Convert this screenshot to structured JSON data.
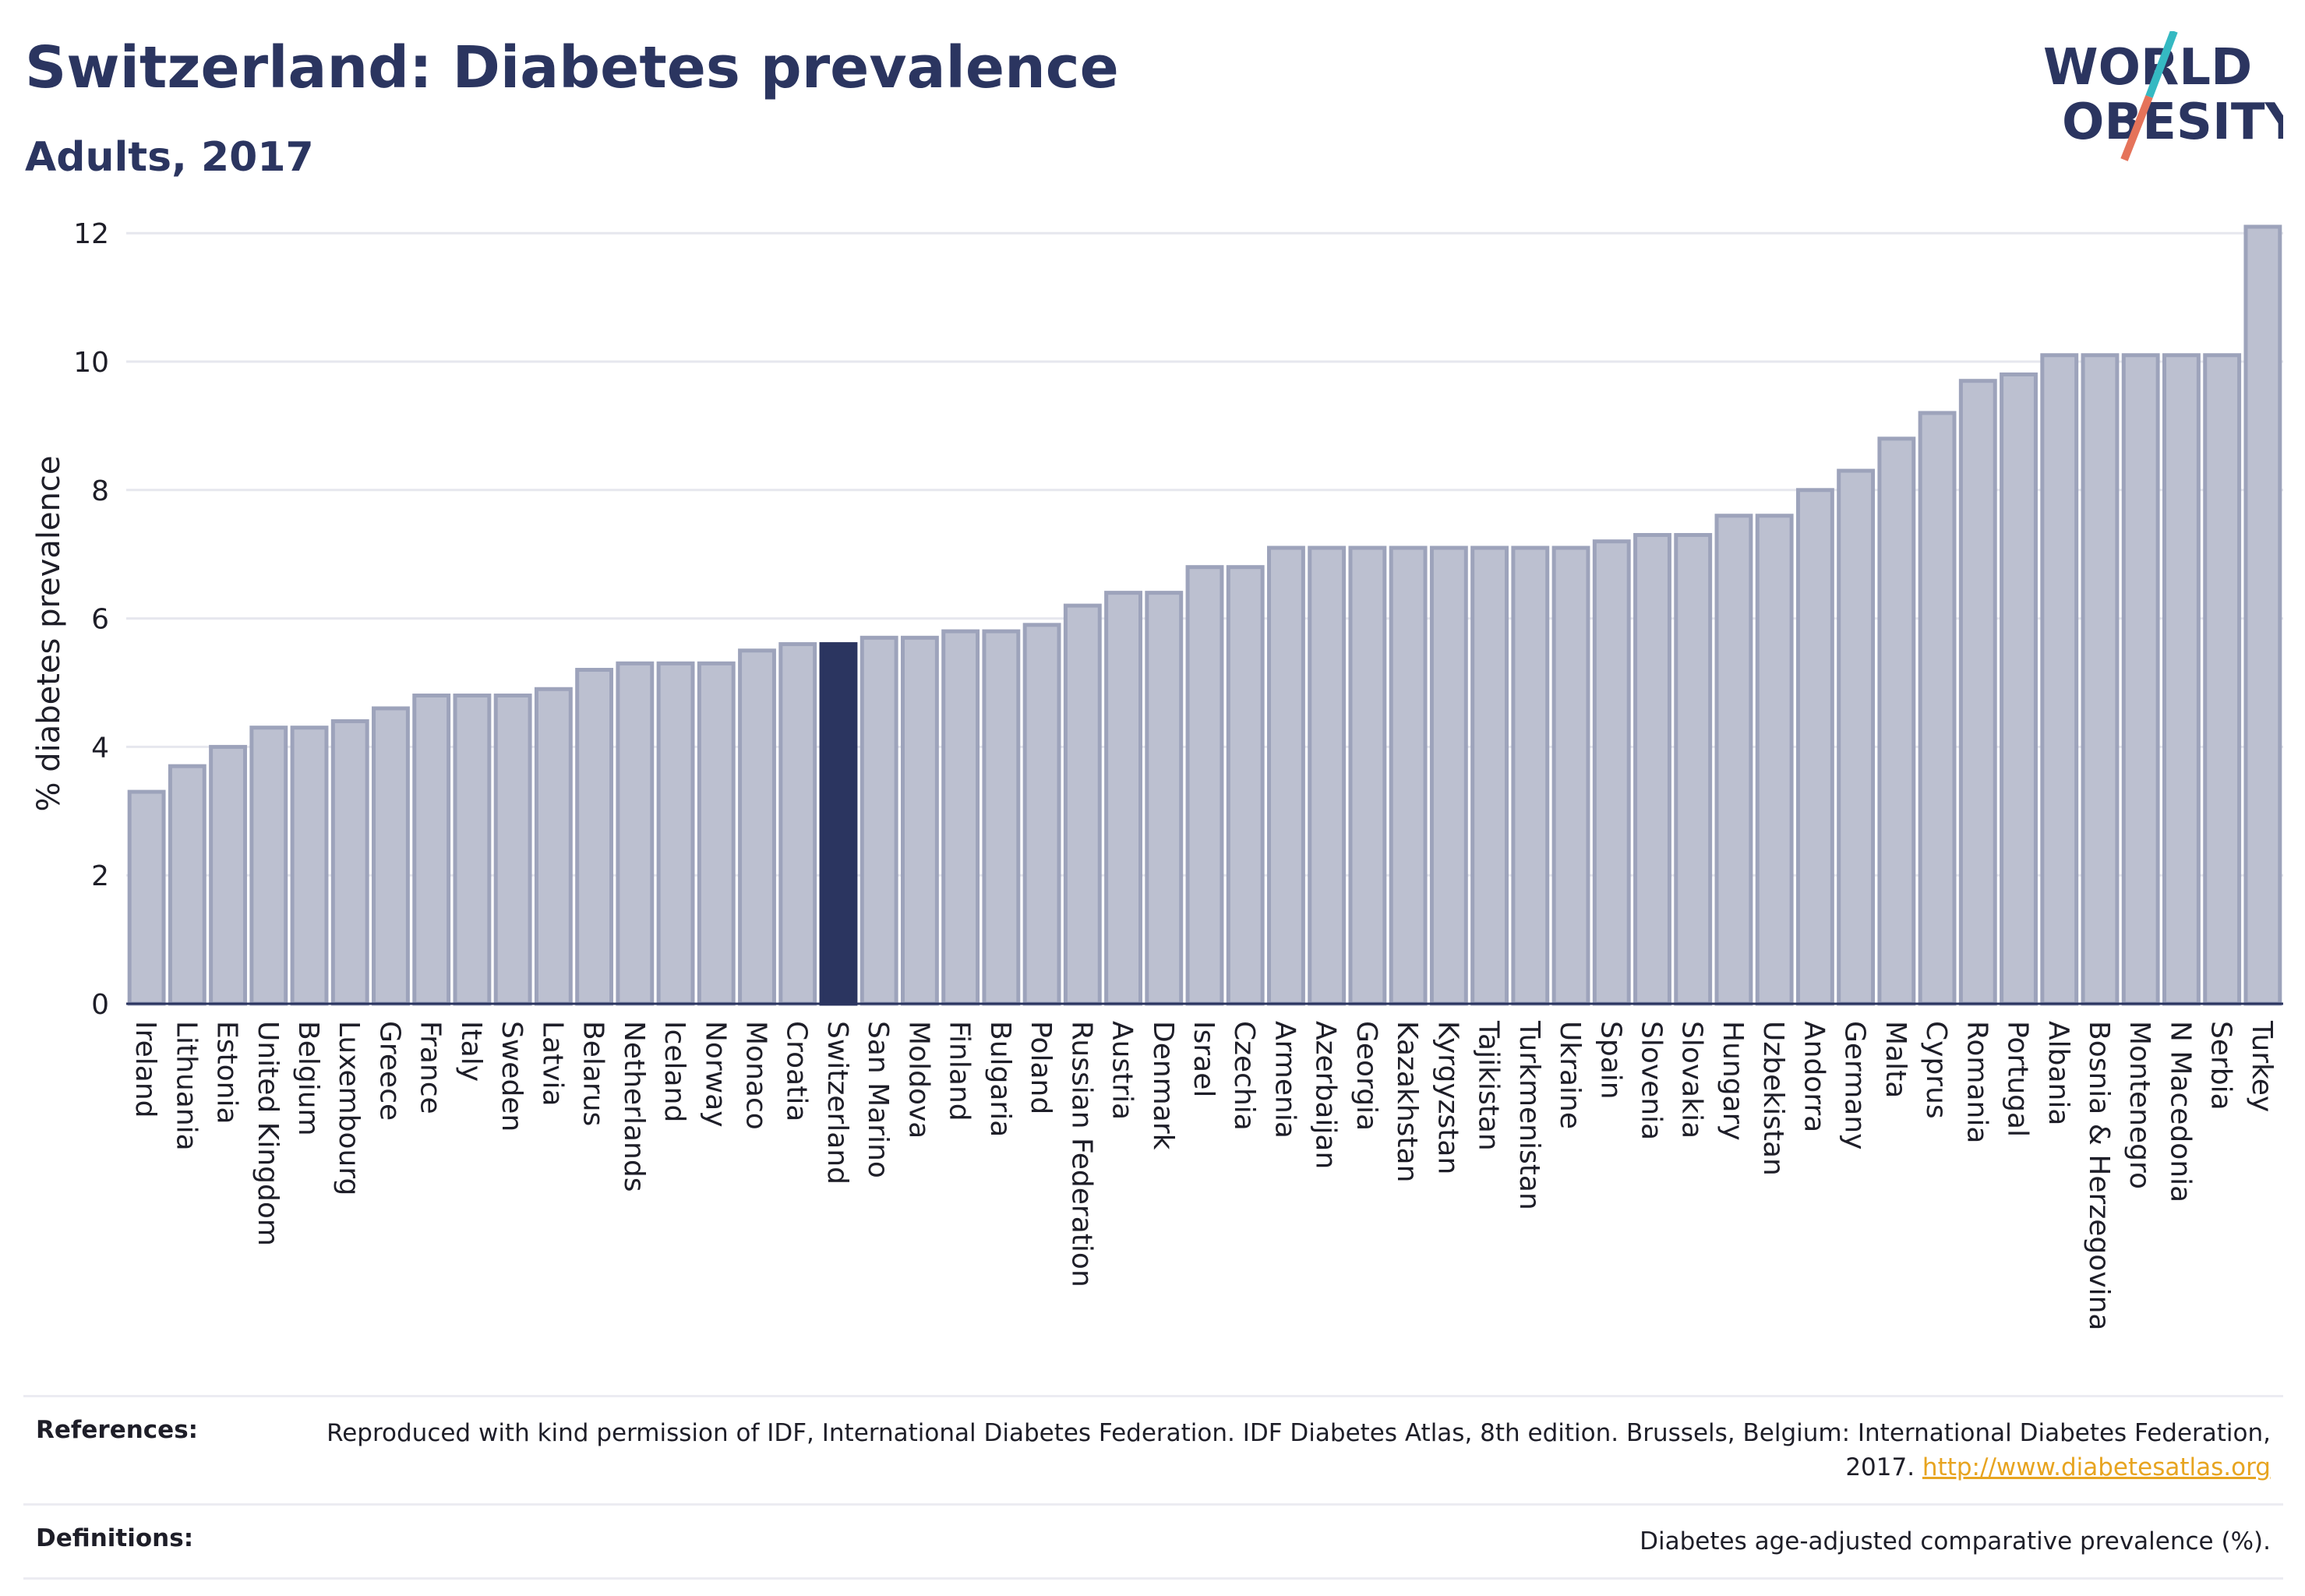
{
  "header": {
    "title": "Switzerland: Diabetes prevalence",
    "subtitle": "Adults, 2017",
    "logo_line1": "WORLD",
    "logo_line2": "OBESITY"
  },
  "colors": {
    "bar": "#bcc0d0",
    "bar_border": "#9da3bb",
    "highlight": "#2b3560",
    "grid": "#e6e7ee",
    "logo_teal": "#35b9c2",
    "logo_coral": "#e5735a"
  },
  "chart_data": {
    "type": "bar",
    "ylabel": "% diabetes prevalence",
    "ylim": [
      0,
      12.5
    ],
    "yticks": [
      0,
      2,
      4,
      6,
      8,
      10,
      12
    ],
    "grid": true,
    "highlight": "Switzerland",
    "categories": [
      "Ireland",
      "Lithuania",
      "Estonia",
      "United Kingdom",
      "Belgium",
      "Luxembourg",
      "Greece",
      "France",
      "Italy",
      "Sweden",
      "Latvia",
      "Belarus",
      "Netherlands",
      "Iceland",
      "Norway",
      "Monaco",
      "Croatia",
      "Switzerland",
      "San Marino",
      "Moldova",
      "Finland",
      "Bulgaria",
      "Poland",
      "Russian Federation",
      "Austria",
      "Denmark",
      "Israel",
      "Czechia",
      "Armenia",
      "Azerbaijan",
      "Georgia",
      "Kazakhstan",
      "Kyrgyzstan",
      "Tajikistan",
      "Turkmenistan",
      "Ukraine",
      "Spain",
      "Slovenia",
      "Slovakia",
      "Hungary",
      "Uzbekistan",
      "Andorra",
      "Germany",
      "Malta",
      "Cyprus",
      "Romania",
      "Portugal",
      "Albania",
      "Bosnia & Herzegovina",
      "Montenegro",
      "N Macedonia",
      "Serbia",
      "Turkey"
    ],
    "values": [
      3.3,
      3.7,
      4.0,
      4.3,
      4.3,
      4.4,
      4.6,
      4.8,
      4.8,
      4.8,
      4.9,
      5.2,
      5.3,
      5.3,
      5.3,
      5.5,
      5.6,
      5.6,
      5.7,
      5.7,
      5.8,
      5.8,
      5.9,
      6.2,
      6.4,
      6.4,
      6.8,
      6.8,
      7.1,
      7.1,
      7.1,
      7.1,
      7.1,
      7.1,
      7.1,
      7.1,
      7.2,
      7.3,
      7.3,
      7.6,
      7.6,
      8.0,
      8.3,
      8.8,
      9.2,
      9.7,
      9.8,
      10.1,
      10.1,
      10.1,
      10.1,
      10.1,
      12.1
    ]
  },
  "references": {
    "label": "References:",
    "text": "Reproduced with kind permission of IDF, International Diabetes Federation. IDF Diabetes Atlas, 8th edition. Brussels, Belgium: International Diabetes Federation, 2017.",
    "link": "http://www.diabetesatlas.org"
  },
  "definitions": {
    "label": "Definitions:",
    "text": "Diabetes age-adjusted comparative prevalence (%)."
  }
}
